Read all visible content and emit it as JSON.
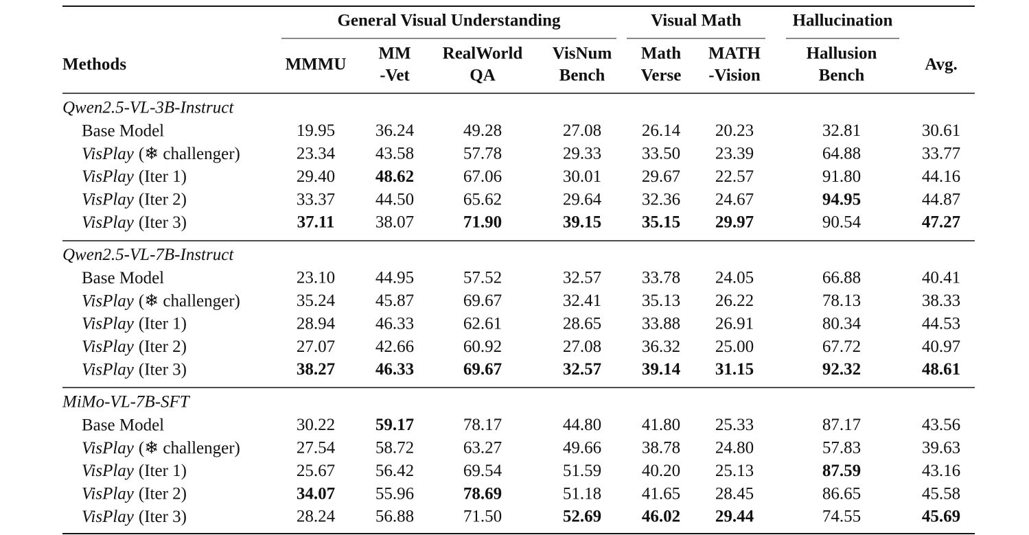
{
  "header": {
    "row_label": "Methods",
    "groups": [
      {
        "label": "General Visual Understanding",
        "columns": [
          [
            "MMMU"
          ],
          [
            "MM",
            "-Vet"
          ],
          [
            "RealWorld",
            "QA"
          ],
          [
            "VisNum",
            "Bench"
          ]
        ]
      },
      {
        "label": "Visual Math",
        "columns": [
          [
            "Math",
            "Verse"
          ],
          [
            "MATH",
            "-Vision"
          ]
        ]
      },
      {
        "label": "Hallucination",
        "columns": [
          [
            "Hallusion",
            "Bench"
          ]
        ]
      }
    ],
    "average": "Avg."
  },
  "sections": [
    {
      "model": "Qwen2.5-VL-3B-Instruct",
      "rows": [
        {
          "name": "Base Model",
          "values": [
            "19.95",
            "36.24",
            "49.28",
            "27.08",
            "26.14",
            "20.23",
            "32.81",
            "30.61"
          ],
          "bold": []
        },
        {
          "name": "VisPlay",
          "note": "(❄ challenger)",
          "values": [
            "23.34",
            "43.58",
            "57.78",
            "29.33",
            "33.50",
            "23.39",
            "64.88",
            "33.77"
          ],
          "bold": []
        },
        {
          "name": "VisPlay",
          "note": "(Iter 1)",
          "values": [
            "29.40",
            "48.62",
            "67.06",
            "30.01",
            "29.67",
            "22.57",
            "91.80",
            "44.16"
          ],
          "bold": [
            1
          ]
        },
        {
          "name": "VisPlay",
          "note": "(Iter 2)",
          "values": [
            "33.37",
            "44.50",
            "65.62",
            "29.64",
            "32.36",
            "24.67",
            "94.95",
            "44.87"
          ],
          "bold": [
            6
          ]
        },
        {
          "name": "VisPlay",
          "note": "(Iter 3)",
          "values": [
            "37.11",
            "38.07",
            "71.90",
            "39.15",
            "35.15",
            "29.97",
            "90.54",
            "47.27"
          ],
          "bold": [
            0,
            2,
            3,
            4,
            5,
            7
          ]
        }
      ]
    },
    {
      "model": "Qwen2.5-VL-7B-Instruct",
      "rows": [
        {
          "name": "Base Model",
          "values": [
            "23.10",
            "44.95",
            "57.52",
            "32.57",
            "33.78",
            "24.05",
            "66.88",
            "40.41"
          ],
          "bold": []
        },
        {
          "name": "VisPlay",
          "note": "(❄ challenger)",
          "values": [
            "35.24",
            "45.87",
            "69.67",
            "32.41",
            "35.13",
            "26.22",
            "78.13",
            "38.33"
          ],
          "bold": []
        },
        {
          "name": "VisPlay",
          "note": "(Iter 1)",
          "values": [
            "28.94",
            "46.33",
            "62.61",
            "28.65",
            "33.88",
            "26.91",
            "80.34",
            "44.53"
          ],
          "bold": []
        },
        {
          "name": "VisPlay",
          "note": "(Iter 2)",
          "values": [
            "27.07",
            "42.66",
            "60.92",
            "27.08",
            "36.32",
            "25.00",
            "67.72",
            "40.97"
          ],
          "bold": []
        },
        {
          "name": "VisPlay",
          "note": "(Iter 3)",
          "values": [
            "38.27",
            "46.33",
            "69.67",
            "32.57",
            "39.14",
            "31.15",
            "92.32",
            "48.61"
          ],
          "bold": [
            0,
            1,
            2,
            3,
            4,
            5,
            6,
            7
          ]
        }
      ]
    },
    {
      "model": "MiMo-VL-7B-SFT",
      "rows": [
        {
          "name": "Base Model",
          "values": [
            "30.22",
            "59.17",
            "78.17",
            "44.80",
            "41.80",
            "25.33",
            "87.17",
            "43.56"
          ],
          "bold": [
            1
          ]
        },
        {
          "name": "VisPlay",
          "note": "(❄ challenger)",
          "values": [
            "27.54",
            "58.72",
            "63.27",
            "49.66",
            "38.78",
            "24.80",
            "57.83",
            "39.63"
          ],
          "bold": []
        },
        {
          "name": "VisPlay",
          "note": "(Iter 1)",
          "values": [
            "25.67",
            "56.42",
            "69.54",
            "51.59",
            "40.20",
            "25.13",
            "87.59",
            "43.16"
          ],
          "bold": [
            6
          ]
        },
        {
          "name": "VisPlay",
          "note": "(Iter 2)",
          "values": [
            "34.07",
            "55.96",
            "78.69",
            "51.18",
            "41.65",
            "28.45",
            "86.65",
            "45.58"
          ],
          "bold": [
            0,
            2
          ]
        },
        {
          "name": "VisPlay",
          "note": "(Iter 3)",
          "values": [
            "28.24",
            "56.88",
            "71.50",
            "52.69",
            "46.02",
            "29.44",
            "74.55",
            "45.69"
          ],
          "bold": [
            3,
            4,
            5,
            7
          ]
        }
      ]
    }
  ]
}
